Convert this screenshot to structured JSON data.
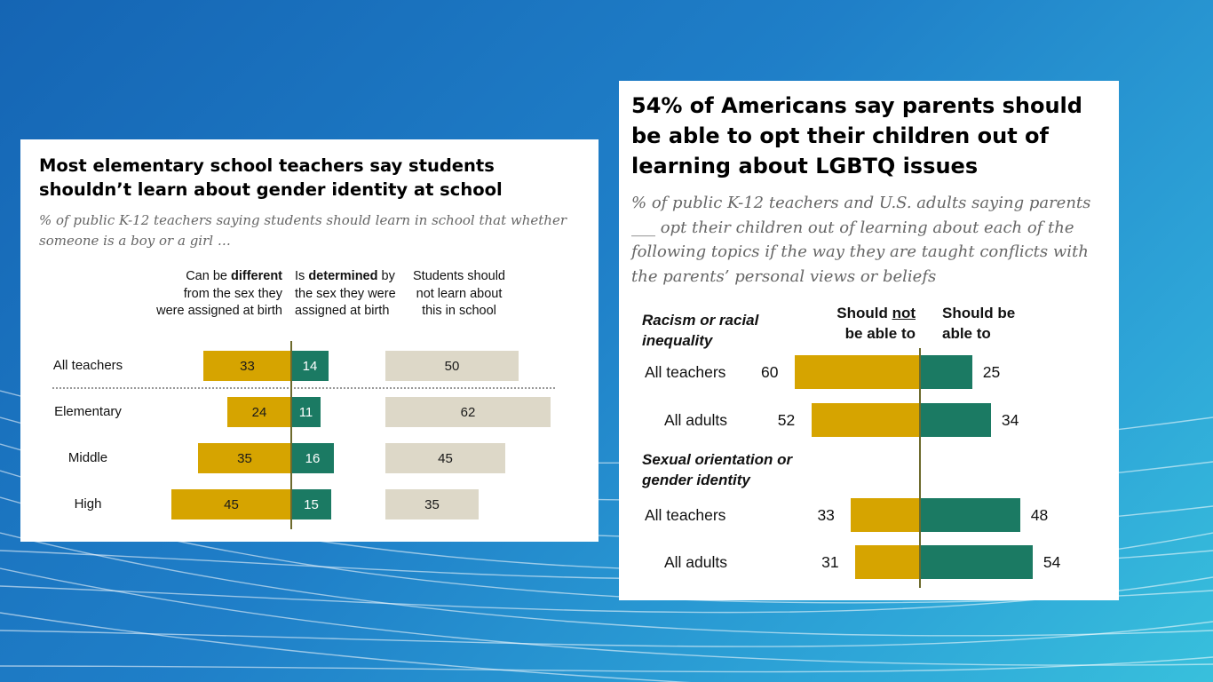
{
  "colors": {
    "gold": "#d6a400",
    "green": "#1b7a63",
    "beige": "#ddd8c8",
    "axis": "#6d6a2c"
  },
  "chart_data": [
    {
      "type": "bar",
      "orientation": "horizontal-diverging",
      "title": "Most elementary school teachers say students shouldn’t learn about gender identity at school",
      "subtitle": "% of public K-12 teachers saying students should learn in school that whether someone is a boy or a girl …",
      "columns": {
        "different": {
          "pre": "Can be ",
          "bold": "different",
          "post": "from the sex they were assigned at birth"
        },
        "determined": {
          "pre": "Is ",
          "bold": "determined",
          "post": " by the sex they were assigned at birth"
        },
        "not_learn": "Students should not learn about this in school"
      },
      "categories": [
        "All teachers",
        "Elementary",
        "Middle",
        "High"
      ],
      "series": [
        {
          "name": "Can be different from the sex they were assigned at birth",
          "values": [
            33,
            24,
            35,
            45
          ],
          "color": "#d6a400"
        },
        {
          "name": "Is determined by the sex they were assigned at birth",
          "values": [
            14,
            11,
            16,
            15
          ],
          "color": "#1b7a63"
        },
        {
          "name": "Students should not learn about this in school",
          "values": [
            50,
            62,
            45,
            35
          ],
          "color": "#ddd8c8"
        }
      ]
    },
    {
      "type": "bar",
      "orientation": "horizontal-diverging",
      "title": "54% of Americans say parents should be able to opt their children out of learning about LGBTQ issues",
      "subtitle": "% of public K-12 teachers and U.S. adults saying parents ___ opt their children out of learning about each of the following topics if the way they are taught conflicts with the parents’ personal views or beliefs",
      "columns": {
        "not_able": {
          "pre": "Should ",
          "underline": "not",
          "post": "be able to"
        },
        "able": "Should be able to"
      },
      "groups": [
        {
          "name": "Racism or racial inequality",
          "categories": [
            "All teachers",
            "All adults"
          ],
          "should_not": [
            60,
            52
          ],
          "should": [
            25,
            34
          ]
        },
        {
          "name": "Sexual orientation or gender identity",
          "categories": [
            "All teachers",
            "All adults"
          ],
          "should_not": [
            33,
            31
          ],
          "should": [
            48,
            54
          ]
        }
      ]
    }
  ]
}
